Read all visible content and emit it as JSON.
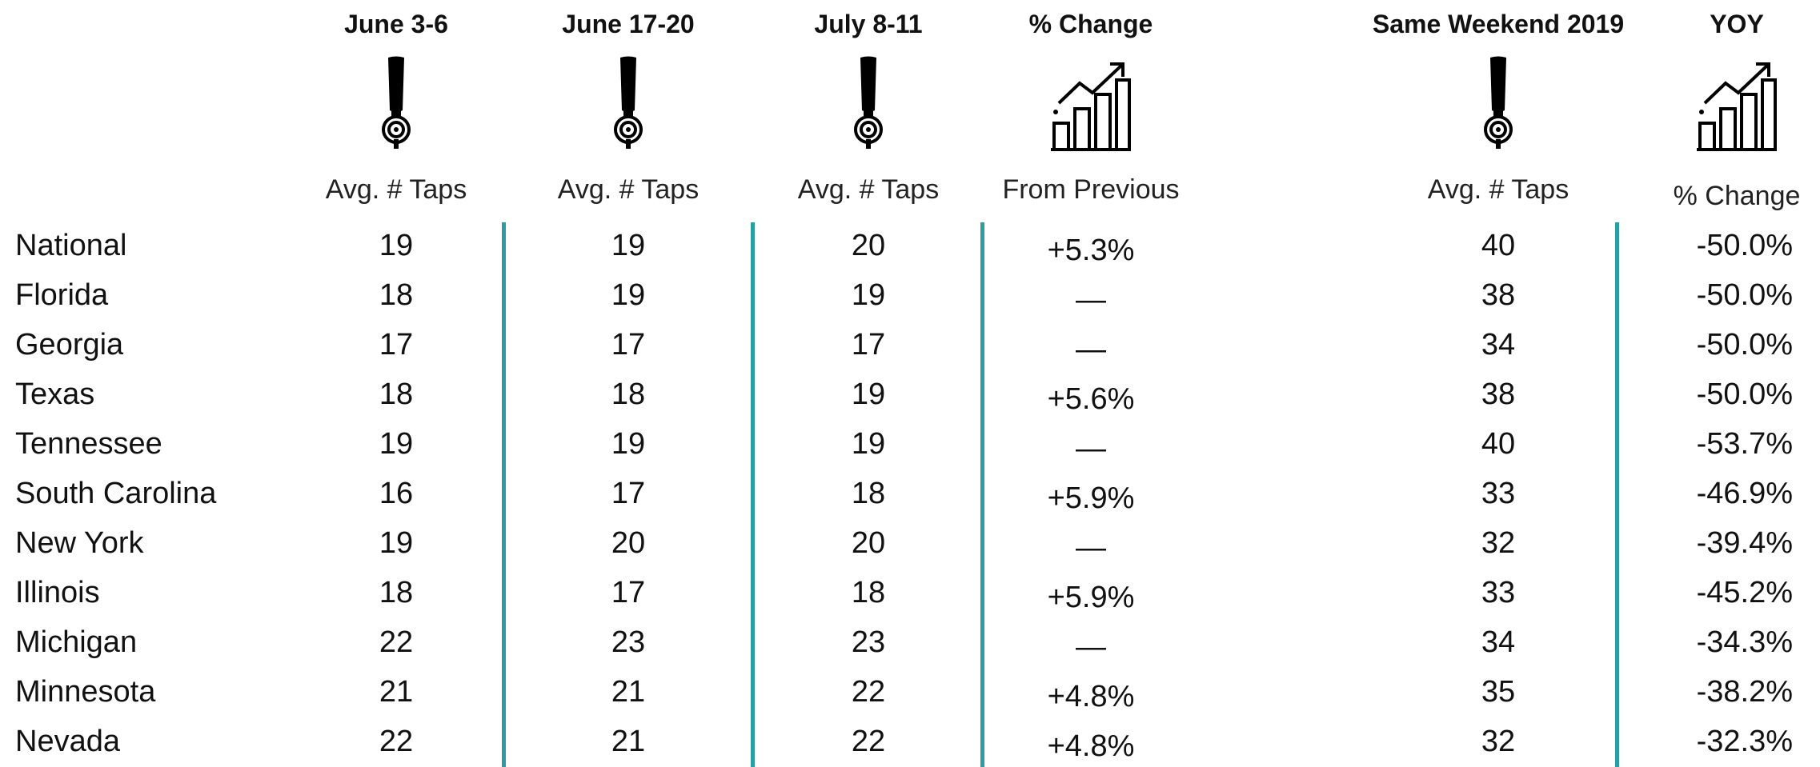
{
  "table": {
    "columns": [
      {
        "title": "June 3-6",
        "subtitle": "Avg. # Taps",
        "icon": "tap"
      },
      {
        "title": "June 17-20",
        "subtitle": "Avg. # Taps",
        "icon": "tap"
      },
      {
        "title": "July 8-11",
        "subtitle": "Avg. # Taps",
        "icon": "tap"
      },
      {
        "title": "% Change",
        "subtitle": "From Previous",
        "icon": "chart"
      },
      {
        "title": "Same Weekend 2019",
        "subtitle": "Avg. # Taps",
        "icon": "tap"
      },
      {
        "title": "YOY",
        "subtitle": "% Change",
        "icon": "chart"
      }
    ],
    "rows": [
      {
        "name": "National",
        "values": [
          19,
          19,
          20,
          "+5.3%",
          40,
          "-50.0%"
        ]
      },
      {
        "name": "Florida",
        "values": [
          18,
          19,
          19,
          "—",
          38,
          "-50.0%"
        ]
      },
      {
        "name": "Georgia",
        "values": [
          17,
          17,
          17,
          "—",
          34,
          "-50.0%"
        ]
      },
      {
        "name": "Texas",
        "values": [
          18,
          18,
          19,
          "+5.6%",
          38,
          "-50.0%"
        ]
      },
      {
        "name": "Tennessee",
        "values": [
          19,
          19,
          19,
          "—",
          40,
          "-53.7%"
        ]
      },
      {
        "name": "South Carolina",
        "values": [
          16,
          17,
          18,
          "+5.9%",
          33,
          "-46.9%"
        ]
      },
      {
        "name": "New York",
        "values": [
          19,
          20,
          20,
          "—",
          32,
          "-39.4%"
        ]
      },
      {
        "name": "Illinois",
        "values": [
          18,
          17,
          18,
          "+5.9%",
          33,
          "-45.2%"
        ]
      },
      {
        "name": "Michigan",
        "values": [
          22,
          23,
          23,
          "—",
          34,
          "-34.3%"
        ]
      },
      {
        "name": "Minnesota",
        "values": [
          21,
          21,
          22,
          "+4.8%",
          35,
          "-38.2%"
        ]
      },
      {
        "name": "Nevada",
        "values": [
          22,
          21,
          22,
          "+4.8%",
          32,
          "-32.3%"
        ]
      }
    ]
  }
}
